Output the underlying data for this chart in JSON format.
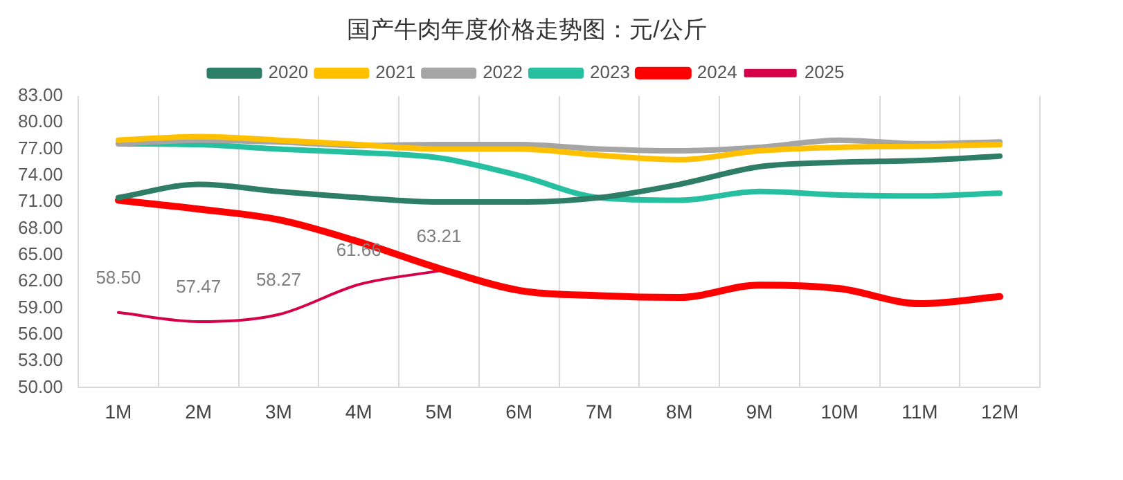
{
  "chart_data": {
    "type": "line",
    "title": "国产牛肉年度价格走势图：元/公斤",
    "categories": [
      "1M",
      "2M",
      "3M",
      "4M",
      "5M",
      "6M",
      "7M",
      "8M",
      "9M",
      "10M",
      "11M",
      "12M"
    ],
    "series": [
      {
        "name": "2020",
        "color": "#2e7d66",
        "values": [
          71.5,
          73.0,
          72.2,
          71.5,
          71.0,
          71.0,
          71.5,
          73.0,
          75.0,
          75.5,
          75.7,
          76.2
        ]
      },
      {
        "name": "2021",
        "color": "#ffc000",
        "values": [
          78.0,
          78.4,
          78.0,
          77.5,
          77.0,
          77.0,
          76.3,
          75.8,
          76.8,
          77.2,
          77.3,
          77.5
        ]
      },
      {
        "name": "2022",
        "color": "#a5a5a5",
        "values": [
          77.6,
          78.0,
          77.8,
          77.4,
          77.5,
          77.5,
          77.0,
          76.8,
          77.2,
          78.0,
          77.6,
          77.8
        ]
      },
      {
        "name": "2023",
        "color": "#26bfa0",
        "values": [
          77.6,
          77.5,
          77.0,
          76.6,
          76.0,
          74.0,
          71.5,
          71.2,
          72.2,
          71.8,
          71.7,
          72.0
        ]
      },
      {
        "name": "2024",
        "color": "#ff0000",
        "values": [
          71.2,
          70.2,
          69.0,
          66.5,
          63.5,
          61.0,
          60.4,
          60.2,
          61.6,
          61.2,
          59.5,
          60.3
        ]
      },
      {
        "name": "2025",
        "color": "#d6004a",
        "values": [
          58.5,
          57.47,
          58.27,
          61.66,
          63.21,
          null,
          null,
          null,
          null,
          null,
          null,
          null
        ],
        "value_labels": [
          "58.50",
          "57.47",
          "58.27",
          "61.66",
          "63.21",
          null,
          null,
          null,
          null,
          null,
          null,
          null
        ]
      }
    ],
    "ylim": [
      50,
      83
    ],
    "yticks": [
      {
        "value": 50,
        "label": "50.00"
      },
      {
        "value": 53,
        "label": "53.00"
      },
      {
        "value": 56,
        "label": "56.00"
      },
      {
        "value": 59,
        "label": "59.00"
      },
      {
        "value": 62,
        "label": "62.00"
      },
      {
        "value": 65,
        "label": "65.00"
      },
      {
        "value": 68,
        "label": "68.00"
      },
      {
        "value": 71,
        "label": "71.00"
      },
      {
        "value": 74,
        "label": "74.00"
      },
      {
        "value": 77,
        "label": "77.00"
      },
      {
        "value": 80,
        "label": "80.00"
      },
      {
        "value": 83,
        "label": "83.00"
      }
    ],
    "grid": "x",
    "legend": "top",
    "marker": "none",
    "line_style": "solid"
  }
}
